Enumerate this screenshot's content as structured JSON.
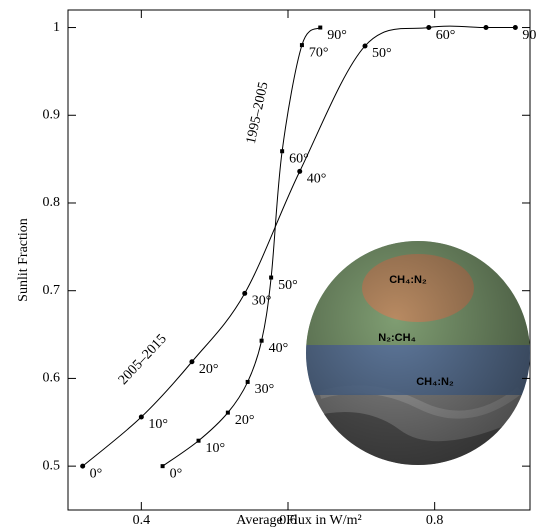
{
  "chart_data": {
    "type": "line",
    "xlabel": "Average Flux in W/m²",
    "ylabel": "Sunlit Fraction",
    "xlim": [
      0.3,
      0.93
    ],
    "ylim": [
      0.45,
      1.02
    ],
    "xticks": [
      0.4,
      0.6,
      0.8
    ],
    "yticks": [
      0.5,
      0.6,
      0.7,
      0.8,
      0.9,
      1
    ],
    "color": "#000000",
    "series": [
      {
        "name": "2005–2015",
        "marker": "circle",
        "x": [
          0.32,
          0.4,
          0.469,
          0.541,
          0.616,
          0.705,
          0.792,
          0.87,
          0.91
        ],
        "values": [
          0.5,
          0.556,
          0.619,
          0.697,
          0.836,
          0.979,
          1.0,
          1.0,
          1.0
        ],
        "point_labels": [
          "0°",
          "10°",
          "20°",
          "30°",
          "40°",
          "50°",
          "60°",
          null,
          "90"
        ]
      },
      {
        "name": "1995–2005",
        "marker": "square",
        "x": [
          0.429,
          0.478,
          0.518,
          0.545,
          0.564,
          0.577,
          0.592,
          0.619,
          0.644
        ],
        "values": [
          0.5,
          0.529,
          0.561,
          0.596,
          0.643,
          0.715,
          0.859,
          0.98,
          1.0
        ],
        "point_labels": [
          "0°",
          "10°",
          "20°",
          "30°",
          "40°",
          "50°",
          "60°",
          "70°",
          "90°"
        ]
      }
    ],
    "inset_labels": [
      "CH₄:N₂",
      "N₂:CH₄",
      "CH₄:N₂"
    ]
  }
}
